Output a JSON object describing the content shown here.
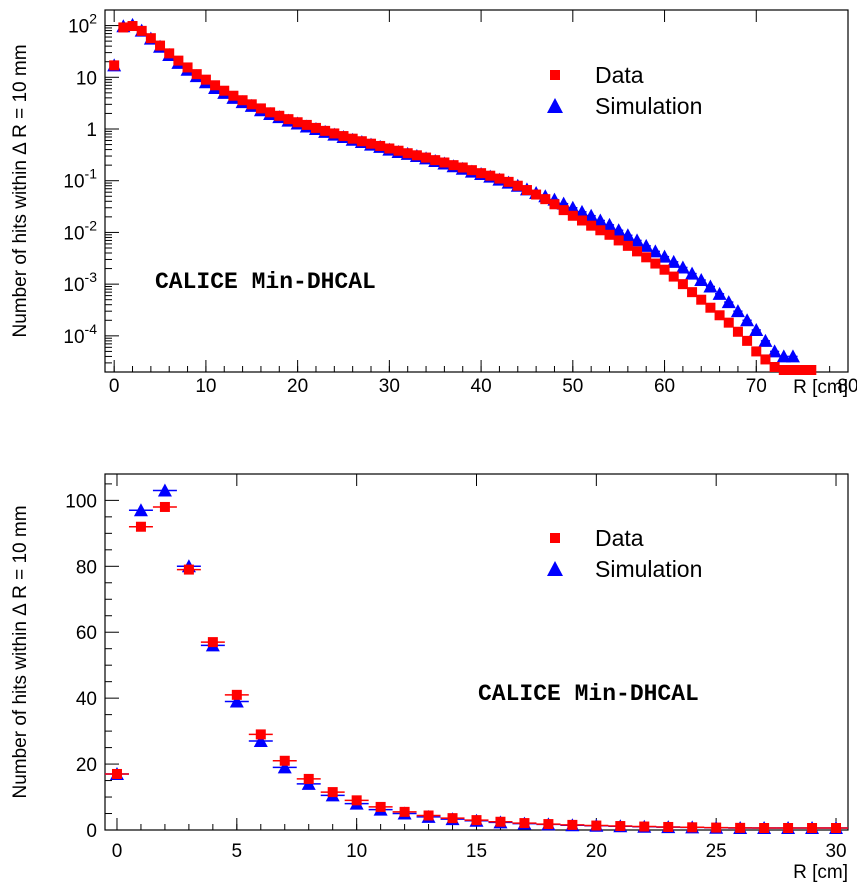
{
  "chart_data": [
    {
      "type": "scatter",
      "xlabel": "R [cm]",
      "ylabel": "Number of hits within Δ R = 10 mm",
      "yscale": "log",
      "xlim": [
        -1,
        80
      ],
      "ylim": [
        2e-05,
        200
      ],
      "x_ticks": [
        "0",
        "10",
        "20",
        "30",
        "40",
        "50",
        "60",
        "70",
        "80"
      ],
      "y_ticks": [
        {
          "base": "10",
          "exp": "-4"
        },
        {
          "base": "10",
          "exp": "-3"
        },
        {
          "base": "10",
          "exp": "-2"
        },
        {
          "base": "10",
          "exp": "-1"
        },
        {
          "base": "1",
          "exp": ""
        },
        {
          "base": "10",
          "exp": ""
        },
        {
          "base": "10",
          "exp": "2"
        }
      ],
      "annotation": "CALICE Min-DHCAL",
      "legend": "top-right",
      "series": [
        {
          "name": "Data",
          "marker": "square",
          "color": "#ff0000",
          "x": [
            0,
            1,
            2,
            3,
            4,
            5,
            6,
            7,
            8,
            9,
            10,
            11,
            12,
            13,
            14,
            15,
            16,
            17,
            18,
            19,
            20,
            21,
            22,
            23,
            24,
            25,
            26,
            27,
            28,
            29,
            30,
            31,
            32,
            33,
            34,
            35,
            36,
            37,
            38,
            39,
            40,
            41,
            42,
            43,
            44,
            45,
            46,
            47,
            48,
            49,
            50,
            51,
            52,
            53,
            54,
            55,
            56,
            57,
            58,
            59,
            60,
            61,
            62,
            63,
            64,
            65,
            66,
            67,
            68,
            69,
            70,
            71,
            72,
            73,
            74,
            75,
            76
          ],
          "y": [
            17,
            92,
            98,
            79,
            57,
            41,
            29,
            21,
            15.5,
            11.5,
            9,
            7,
            5.5,
            4.4,
            3.6,
            3.0,
            2.5,
            2.1,
            1.8,
            1.55,
            1.35,
            1.2,
            1.05,
            0.92,
            0.82,
            0.73,
            0.65,
            0.58,
            0.52,
            0.47,
            0.42,
            0.38,
            0.34,
            0.31,
            0.28,
            0.25,
            0.225,
            0.2,
            0.18,
            0.16,
            0.14,
            0.125,
            0.11,
            0.095,
            0.08,
            0.066,
            0.054,
            0.044,
            0.035,
            0.027,
            0.021,
            0.017,
            0.0135,
            0.011,
            0.009,
            0.007,
            0.0055,
            0.0043,
            0.0033,
            0.0025,
            0.0019,
            0.0014,
            0.001,
            0.0007,
            0.0005,
            0.00035,
            0.00025,
            0.00018,
            0.00012,
            8e-05,
            5e-05,
            3.5e-05,
            2.5e-05,
            2e-05,
            2e-05,
            2e-05,
            2e-05
          ]
        },
        {
          "name": "Simulation",
          "marker": "triangle",
          "color": "#0000ff",
          "x": [
            0,
            1,
            2,
            3,
            4,
            5,
            6,
            7,
            8,
            9,
            10,
            11,
            12,
            13,
            14,
            15,
            16,
            17,
            18,
            19,
            20,
            21,
            22,
            23,
            24,
            25,
            26,
            27,
            28,
            29,
            30,
            31,
            32,
            33,
            34,
            35,
            36,
            37,
            38,
            39,
            40,
            41,
            42,
            43,
            44,
            45,
            46,
            47,
            48,
            49,
            50,
            51,
            52,
            53,
            54,
            55,
            56,
            57,
            58,
            59,
            60,
            61,
            62,
            63,
            64,
            65,
            66,
            67,
            68,
            69,
            70,
            71,
            72,
            73,
            74
          ],
          "y": [
            17,
            97,
            103,
            80,
            56,
            39,
            27,
            19,
            14,
            10.5,
            8,
            6.2,
            5,
            4,
            3.3,
            2.8,
            2.3,
            1.95,
            1.7,
            1.45,
            1.28,
            1.12,
            1.0,
            0.88,
            0.78,
            0.7,
            0.62,
            0.56,
            0.5,
            0.45,
            0.4,
            0.36,
            0.33,
            0.3,
            0.27,
            0.24,
            0.215,
            0.19,
            0.17,
            0.15,
            0.135,
            0.12,
            0.105,
            0.092,
            0.08,
            0.068,
            0.058,
            0.05,
            0.043,
            0.036,
            0.03,
            0.025,
            0.021,
            0.017,
            0.014,
            0.011,
            0.0088,
            0.007,
            0.0055,
            0.0043,
            0.0034,
            0.0027,
            0.0021,
            0.0016,
            0.0012,
            0.0009,
            0.00065,
            0.00045,
            0.0003,
            0.0002,
            0.00013,
            8e-05,
            5e-05,
            4e-05,
            4e-05
          ]
        }
      ]
    },
    {
      "type": "scatter",
      "xlabel": "R [cm]",
      "ylabel": "Number of hits within Δ R = 10 mm",
      "yscale": "linear",
      "xlim": [
        -0.5,
        30.5
      ],
      "ylim": [
        0,
        108
      ],
      "x_ticks": [
        "0",
        "5",
        "10",
        "15",
        "20",
        "25",
        "30"
      ],
      "y_ticks": [
        "0",
        "20",
        "40",
        "60",
        "80",
        "100"
      ],
      "annotation": "CALICE Min-DHCAL",
      "legend": "top-right",
      "series": [
        {
          "name": "Data",
          "marker": "square",
          "color": "#ff0000",
          "x": [
            0,
            1,
            2,
            3,
            4,
            5,
            6,
            7,
            8,
            9,
            10,
            11,
            12,
            13,
            14,
            15,
            16,
            17,
            18,
            19,
            20,
            21,
            22,
            23,
            24,
            25,
            26,
            27,
            28,
            29,
            30
          ],
          "y": [
            17,
            92,
            98,
            79,
            57,
            41,
            29,
            21,
            15.5,
            11.5,
            9,
            7,
            5.5,
            4.4,
            3.6,
            3.0,
            2.5,
            2.1,
            1.8,
            1.55,
            1.35,
            1.2,
            1.05,
            0.92,
            0.82,
            0.73,
            0.65,
            0.58,
            0.52,
            0.47,
            0.42
          ]
        },
        {
          "name": "Simulation",
          "marker": "triangle",
          "color": "#0000ff",
          "x": [
            0,
            1,
            2,
            3,
            4,
            5,
            6,
            7,
            8,
            9,
            10,
            11,
            12,
            13,
            14,
            15,
            16,
            17,
            18,
            19,
            20,
            21,
            22,
            23,
            24,
            25,
            26,
            27,
            28,
            29,
            30
          ],
          "y": [
            17,
            97,
            103,
            80,
            56,
            39,
            27,
            19,
            14,
            10.5,
            8,
            6.2,
            5,
            4,
            3.3,
            2.8,
            2.3,
            1.95,
            1.7,
            1.45,
            1.28,
            1.12,
            1.0,
            0.88,
            0.78,
            0.7,
            0.62,
            0.56,
            0.5,
            0.45,
            0.4
          ]
        }
      ]
    }
  ]
}
